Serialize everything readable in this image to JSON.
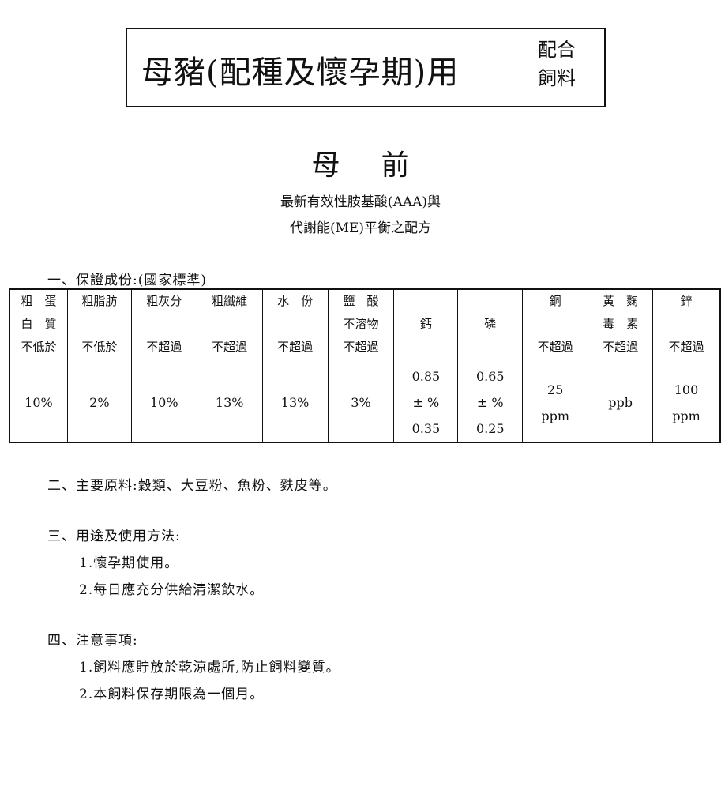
{
  "title": {
    "main": "母豬(配種及懷孕期)用",
    "side_line1": "配合",
    "side_line2": "飼料"
  },
  "subtitle": [
    "母",
    "前"
  ],
  "tagline": [
    "最新有效性胺基酸(AAA)與",
    "代謝能(ME)平衡之配方"
  ],
  "section1": {
    "heading": "一、保證成份:(國家標準)"
  },
  "table": {
    "headers": [
      [
        "粗　蛋",
        "白　質",
        "不低於"
      ],
      [
        "粗脂肪",
        "",
        "不低於"
      ],
      [
        "粗灰分",
        "",
        "不超過"
      ],
      [
        "粗纖維",
        "",
        "不超過"
      ],
      [
        "水　份",
        "",
        "不超過"
      ],
      [
        "鹽　酸",
        "不溶物",
        "不超過"
      ],
      [
        "",
        "鈣",
        ""
      ],
      [
        "",
        "磷",
        ""
      ],
      [
        "銅",
        "",
        "不超過"
      ],
      [
        "黃　麴",
        "毒　素",
        "不超過"
      ],
      [
        "鋅",
        "",
        "不超過"
      ]
    ],
    "values": [
      [
        "10%"
      ],
      [
        "2%"
      ],
      [
        "10%"
      ],
      [
        "13%"
      ],
      [
        "13%"
      ],
      [
        "3%"
      ],
      [
        "0.85",
        "± %",
        "0.35"
      ],
      [
        "0.65",
        "± %",
        "0.25"
      ],
      [
        "25",
        "ppm"
      ],
      [
        "ppb"
      ],
      [
        "100",
        "ppm"
      ]
    ]
  },
  "section2": {
    "heading": "二、主要原料:穀類、大豆粉、魚粉、麩皮等。"
  },
  "section3": {
    "heading": "三、用途及使用方法:",
    "items": [
      "1.懷孕期使用。",
      "2.每日應充分供給清潔飲水。"
    ]
  },
  "section4": {
    "heading": "四、注意事項:",
    "items": [
      "1.飼料應貯放於乾涼處所,防止飼料變質。",
      "2.本飼料保存期限為一個月。"
    ]
  }
}
